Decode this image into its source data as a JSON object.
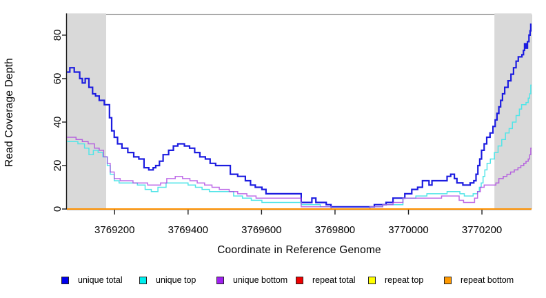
{
  "chart_data": {
    "type": "line",
    "subtype": "step-after",
    "title": "",
    "xlabel": "Coordinate in Reference Genome",
    "ylabel": "Read Coverage Depth",
    "xlim": [
      3769070,
      3770335
    ],
    "ylim": [
      0,
      89.5
    ],
    "x_ticks": [
      3769200,
      3769400,
      3769600,
      3769800,
      3770000,
      3770200
    ],
    "y_ticks": [
      0,
      20,
      40,
      60,
      80
    ],
    "grid": false,
    "legend_position": "bottom",
    "shaded_region_color": "#d9d9d9",
    "shaded_regions": [
      {
        "x0": 3769070,
        "x1": 3769177
      },
      {
        "x0": 3770234,
        "x1": 3770335
      }
    ],
    "series": [
      {
        "name": "unique total",
        "color": "#1c1ce0",
        "swatch": "#0000ee",
        "width": 2.2,
        "opacity": 1,
        "points": [
          [
            3769070,
            63
          ],
          [
            3769078,
            65
          ],
          [
            3769090,
            63
          ],
          [
            3769105,
            60
          ],
          [
            3769112,
            58
          ],
          [
            3769120,
            60
          ],
          [
            3769130,
            56
          ],
          [
            3769140,
            53
          ],
          [
            3769148,
            52
          ],
          [
            3769158,
            50
          ],
          [
            3769172,
            48
          ],
          [
            3769186,
            42
          ],
          [
            3769192,
            36
          ],
          [
            3769199,
            33
          ],
          [
            3769208,
            30
          ],
          [
            3769220,
            28
          ],
          [
            3769236,
            26
          ],
          [
            3769252,
            24
          ],
          [
            3769266,
            23
          ],
          [
            3769280,
            19
          ],
          [
            3769293,
            18
          ],
          [
            3769305,
            19
          ],
          [
            3769312,
            20
          ],
          [
            3769322,
            22
          ],
          [
            3769332,
            25
          ],
          [
            3769347,
            27
          ],
          [
            3769360,
            29
          ],
          [
            3769372,
            30
          ],
          [
            3769390,
            29
          ],
          [
            3769404,
            28
          ],
          [
            3769418,
            26
          ],
          [
            3769432,
            24
          ],
          [
            3769447,
            23
          ],
          [
            3769460,
            21
          ],
          [
            3769475,
            20
          ],
          [
            3769515,
            16
          ],
          [
            3769535,
            15
          ],
          [
            3769556,
            13
          ],
          [
            3769570,
            11
          ],
          [
            3769583,
            10
          ],
          [
            3769601,
            9
          ],
          [
            3769612,
            7
          ],
          [
            3769708,
            3
          ],
          [
            3769737,
            5
          ],
          [
            3769748,
            3
          ],
          [
            3769776,
            2
          ],
          [
            3769789,
            1
          ],
          [
            3769883,
            1
          ],
          [
            3769907,
            2
          ],
          [
            3769939,
            3
          ],
          [
            3769958,
            5
          ],
          [
            3769990,
            7
          ],
          [
            3770009,
            9
          ],
          [
            3770025,
            10
          ],
          [
            3770038,
            13
          ],
          [
            3770056,
            11
          ],
          [
            3770064,
            13
          ],
          [
            3770090,
            13
          ],
          [
            3770105,
            15
          ],
          [
            3770115,
            16
          ],
          [
            3770125,
            14
          ],
          [
            3770132,
            12
          ],
          [
            3770148,
            11
          ],
          [
            3770168,
            12
          ],
          [
            3770178,
            13
          ],
          [
            3770184,
            16
          ],
          [
            3770189,
            20
          ],
          [
            3770194,
            23
          ],
          [
            3770199,
            27
          ],
          [
            3770206,
            30
          ],
          [
            3770213,
            33
          ],
          [
            3770222,
            35
          ],
          [
            3770230,
            38
          ],
          [
            3770236,
            41
          ],
          [
            3770241,
            44
          ],
          [
            3770246,
            47
          ],
          [
            3770251,
            50
          ],
          [
            3770256,
            53
          ],
          [
            3770262,
            56
          ],
          [
            3770271,
            59
          ],
          [
            3770279,
            62
          ],
          [
            3770286,
            65
          ],
          [
            3770293,
            68
          ],
          [
            3770299,
            70
          ],
          [
            3770309,
            71
          ],
          [
            3770313,
            73
          ],
          [
            3770316,
            76
          ],
          [
            3770320,
            74
          ],
          [
            3770324,
            77
          ],
          [
            3770328,
            80
          ],
          [
            3770331,
            82
          ],
          [
            3770333,
            85
          ]
        ]
      },
      {
        "name": "unique top",
        "color": "#52e5e8",
        "swatch": "#00eeee",
        "width": 1.5,
        "opacity": 1,
        "points": [
          [
            3769070,
            31
          ],
          [
            3769100,
            30
          ],
          [
            3769118,
            28
          ],
          [
            3769130,
            25
          ],
          [
            3769142,
            27
          ],
          [
            3769155,
            26
          ],
          [
            3769168,
            24
          ],
          [
            3769180,
            20
          ],
          [
            3769188,
            16
          ],
          [
            3769199,
            13
          ],
          [
            3769212,
            12
          ],
          [
            3769245,
            12
          ],
          [
            3769262,
            11
          ],
          [
            3769283,
            9
          ],
          [
            3769300,
            8
          ],
          [
            3769318,
            10
          ],
          [
            3769340,
            12
          ],
          [
            3769382,
            12
          ],
          [
            3769400,
            11
          ],
          [
            3769420,
            10
          ],
          [
            3769438,
            9
          ],
          [
            3769458,
            8
          ],
          [
            3769524,
            6
          ],
          [
            3769548,
            5
          ],
          [
            3769572,
            4
          ],
          [
            3769601,
            3
          ],
          [
            3769708,
            2
          ],
          [
            3769760,
            1
          ],
          [
            3769789,
            0
          ],
          [
            3769895,
            1
          ],
          [
            3769930,
            2
          ],
          [
            3769958,
            2
          ],
          [
            3769985,
            5
          ],
          [
            3770020,
            6
          ],
          [
            3770050,
            7
          ],
          [
            3770105,
            8
          ],
          [
            3770140,
            7
          ],
          [
            3770152,
            6
          ],
          [
            3770176,
            7
          ],
          [
            3770188,
            8
          ],
          [
            3770193,
            10
          ],
          [
            3770198,
            12
          ],
          [
            3770203,
            15
          ],
          [
            3770208,
            18
          ],
          [
            3770214,
            21
          ],
          [
            3770223,
            23
          ],
          [
            3770234,
            26
          ],
          [
            3770244,
            29
          ],
          [
            3770254,
            32
          ],
          [
            3770264,
            35
          ],
          [
            3770274,
            37
          ],
          [
            3770283,
            40
          ],
          [
            3770293,
            43
          ],
          [
            3770302,
            46
          ],
          [
            3770308,
            48
          ],
          [
            3770320,
            49
          ],
          [
            3770326,
            51
          ],
          [
            3770330,
            53
          ],
          [
            3770333,
            57
          ]
        ]
      },
      {
        "name": "unique bottom",
        "color": "#a83ae0",
        "swatch": "#a020f0",
        "width": 1.5,
        "opacity": 0.74,
        "points": [
          [
            3769070,
            33
          ],
          [
            3769095,
            32
          ],
          [
            3769112,
            31
          ],
          [
            3769128,
            30
          ],
          [
            3769145,
            28
          ],
          [
            3769158,
            27
          ],
          [
            3769170,
            24
          ],
          [
            3769180,
            21
          ],
          [
            3769188,
            17
          ],
          [
            3769199,
            14
          ],
          [
            3769215,
            13
          ],
          [
            3769250,
            12
          ],
          [
            3769290,
            11
          ],
          [
            3769325,
            12
          ],
          [
            3769342,
            14
          ],
          [
            3769365,
            15
          ],
          [
            3769385,
            14
          ],
          [
            3769405,
            13
          ],
          [
            3769425,
            12
          ],
          [
            3769445,
            11
          ],
          [
            3769465,
            10
          ],
          [
            3769485,
            9
          ],
          [
            3769512,
            8
          ],
          [
            3769535,
            7
          ],
          [
            3769560,
            6
          ],
          [
            3769585,
            5
          ],
          [
            3769708,
            1
          ],
          [
            3769790,
            0
          ],
          [
            3769895,
            1
          ],
          [
            3769930,
            2
          ],
          [
            3769958,
            3
          ],
          [
            3769985,
            5
          ],
          [
            3770090,
            6
          ],
          [
            3770138,
            4
          ],
          [
            3770150,
            3
          ],
          [
            3770172,
            3
          ],
          [
            3770180,
            5
          ],
          [
            3770188,
            8
          ],
          [
            3770196,
            10
          ],
          [
            3770206,
            11
          ],
          [
            3770238,
            12
          ],
          [
            3770246,
            14
          ],
          [
            3770258,
            15
          ],
          [
            3770268,
            16
          ],
          [
            3770278,
            17
          ],
          [
            3770288,
            18
          ],
          [
            3770298,
            19
          ],
          [
            3770306,
            20
          ],
          [
            3770314,
            21
          ],
          [
            3770320,
            22
          ],
          [
            3770326,
            23
          ],
          [
            3770330,
            25
          ],
          [
            3770333,
            28
          ]
        ]
      },
      {
        "name": "repeat total",
        "color": "#dd0000",
        "swatch": "#ee0000",
        "width": 1.2,
        "opacity": 1,
        "points": [
          [
            3769070,
            0
          ]
        ]
      },
      {
        "name": "repeat top",
        "color": "#f0f000",
        "swatch": "#ffff00",
        "width": 1.2,
        "opacity": 1,
        "points": [
          [
            3769070,
            0
          ]
        ]
      },
      {
        "name": "repeat bottom",
        "color": "#ff9100",
        "swatch": "#ff9900",
        "width": 2,
        "opacity": 1,
        "points": [
          [
            3769070,
            0
          ]
        ]
      }
    ]
  }
}
